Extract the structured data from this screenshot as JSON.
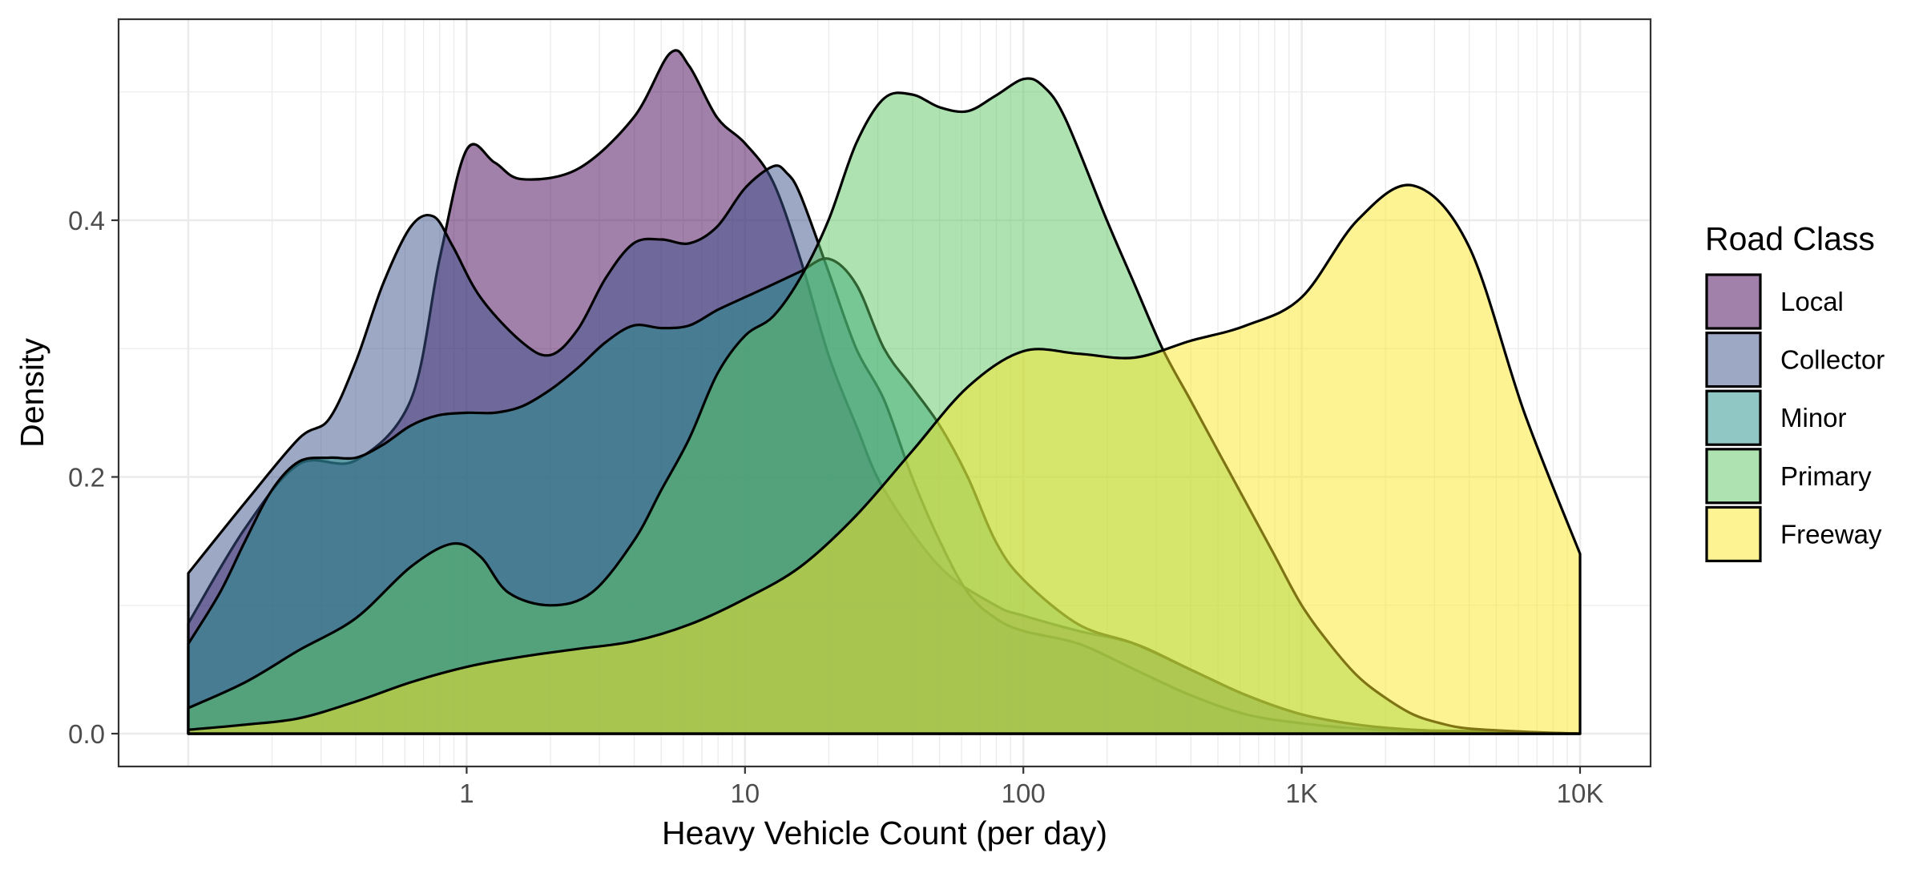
{
  "chart_data": {
    "type": "area",
    "subtype": "density",
    "title": "",
    "xlabel": "Heavy Vehicle Count (per day)",
    "ylabel": "Density",
    "x_scale": "log10",
    "xlim": [
      0.1,
      10000
    ],
    "ylim": [
      0,
      0.53
    ],
    "x_ticks": [
      {
        "value": 1,
        "label": "1"
      },
      {
        "value": 10,
        "label": "10"
      },
      {
        "value": 100,
        "label": "100"
      },
      {
        "value": 1000,
        "label": "1K"
      },
      {
        "value": 10000,
        "label": "10K"
      }
    ],
    "y_ticks": [
      {
        "value": 0,
        "label": "0.0"
      },
      {
        "value": 0.2,
        "label": "0.2"
      },
      {
        "value": 0.4,
        "label": "0.4"
      }
    ],
    "grid": true,
    "fill_opacity": 0.5,
    "legend": {
      "title": "Road Class",
      "position": "right"
    },
    "series": [
      {
        "name": "Local",
        "color": "#440154",
        "points": [
          [
            0.1,
            0.086
          ],
          [
            0.16,
            0.16
          ],
          [
            0.25,
            0.21
          ],
          [
            0.4,
            0.213
          ],
          [
            0.63,
            0.26
          ],
          [
            0.8,
            0.37
          ],
          [
            1.0,
            0.455
          ],
          [
            1.26,
            0.445
          ],
          [
            1.58,
            0.432
          ],
          [
            2.51,
            0.44
          ],
          [
            3.98,
            0.48
          ],
          [
            5.37,
            0.53
          ],
          [
            6.31,
            0.52
          ],
          [
            7.94,
            0.48
          ],
          [
            10.0,
            0.46
          ],
          [
            12.6,
            0.43
          ],
          [
            15.8,
            0.37
          ],
          [
            19.95,
            0.295
          ],
          [
            25.1,
            0.24
          ],
          [
            31.6,
            0.19
          ],
          [
            50.1,
            0.13
          ],
          [
            79.4,
            0.1
          ],
          [
            100,
            0.092
          ],
          [
            158,
            0.08
          ],
          [
            251,
            0.07
          ],
          [
            398,
            0.05
          ],
          [
            631,
            0.03
          ],
          [
            1000,
            0.015
          ],
          [
            1585,
            0.007
          ],
          [
            2512,
            0.003
          ],
          [
            3981,
            0.002
          ],
          [
            6310,
            0.001
          ],
          [
            10000,
            0.0
          ]
        ]
      },
      {
        "name": "Collector",
        "color": "#3b528b",
        "points": [
          [
            0.1,
            0.125
          ],
          [
            0.16,
            0.18
          ],
          [
            0.25,
            0.23
          ],
          [
            0.32,
            0.245
          ],
          [
            0.4,
            0.29
          ],
          [
            0.5,
            0.35
          ],
          [
            0.63,
            0.395
          ],
          [
            0.76,
            0.403
          ],
          [
            0.89,
            0.38
          ],
          [
            1.12,
            0.34
          ],
          [
            1.58,
            0.305
          ],
          [
            2.0,
            0.295
          ],
          [
            2.51,
            0.315
          ],
          [
            3.16,
            0.355
          ],
          [
            3.98,
            0.382
          ],
          [
            5.01,
            0.385
          ],
          [
            6.31,
            0.382
          ],
          [
            7.94,
            0.395
          ],
          [
            10.0,
            0.425
          ],
          [
            12.6,
            0.442
          ],
          [
            14.1,
            0.437
          ],
          [
            15.8,
            0.42
          ],
          [
            19.95,
            0.36
          ],
          [
            25.1,
            0.3
          ],
          [
            31.6,
            0.26
          ],
          [
            39.8,
            0.2
          ],
          [
            50.1,
            0.15
          ],
          [
            63.1,
            0.11
          ],
          [
            79.4,
            0.09
          ],
          [
            100,
            0.08
          ],
          [
            158,
            0.07
          ],
          [
            251,
            0.05
          ],
          [
            398,
            0.03
          ],
          [
            631,
            0.015
          ],
          [
            1000,
            0.008
          ],
          [
            1585,
            0.004
          ],
          [
            2512,
            0.002
          ],
          [
            3981,
            0.001
          ],
          [
            10000,
            0.0
          ]
        ]
      },
      {
        "name": "Minor",
        "color": "#21908c",
        "points": [
          [
            0.1,
            0.07
          ],
          [
            0.13,
            0.11
          ],
          [
            0.16,
            0.15
          ],
          [
            0.2,
            0.19
          ],
          [
            0.25,
            0.212
          ],
          [
            0.32,
            0.215
          ],
          [
            0.4,
            0.215
          ],
          [
            0.5,
            0.225
          ],
          [
            0.63,
            0.24
          ],
          [
            0.79,
            0.248
          ],
          [
            1.0,
            0.25
          ],
          [
            1.26,
            0.25
          ],
          [
            1.58,
            0.255
          ],
          [
            2.0,
            0.268
          ],
          [
            2.51,
            0.285
          ],
          [
            3.16,
            0.305
          ],
          [
            3.98,
            0.318
          ],
          [
            5.01,
            0.316
          ],
          [
            6.31,
            0.318
          ],
          [
            7.94,
            0.33
          ],
          [
            10.0,
            0.34
          ],
          [
            12.6,
            0.35
          ],
          [
            15.8,
            0.36
          ],
          [
            19.95,
            0.37
          ],
          [
            25.1,
            0.35
          ],
          [
            31.6,
            0.3
          ],
          [
            39.8,
            0.27
          ],
          [
            50.1,
            0.24
          ],
          [
            63.1,
            0.2
          ],
          [
            79.4,
            0.15
          ],
          [
            100,
            0.12
          ],
          [
            158,
            0.085
          ],
          [
            251,
            0.07
          ],
          [
            398,
            0.05
          ],
          [
            631,
            0.03
          ],
          [
            1000,
            0.015
          ],
          [
            1585,
            0.007
          ],
          [
            2512,
            0.003
          ],
          [
            3981,
            0.0015
          ],
          [
            10000,
            0.0
          ]
        ]
      },
      {
        "name": "Primary",
        "color": "#5dc863",
        "points": [
          [
            0.1,
            0.02
          ],
          [
            0.16,
            0.04
          ],
          [
            0.25,
            0.065
          ],
          [
            0.4,
            0.09
          ],
          [
            0.63,
            0.13
          ],
          [
            0.89,
            0.148
          ],
          [
            1.12,
            0.138
          ],
          [
            1.41,
            0.11
          ],
          [
            2.0,
            0.1
          ],
          [
            2.82,
            0.11
          ],
          [
            3.98,
            0.15
          ],
          [
            5.01,
            0.19
          ],
          [
            6.31,
            0.23
          ],
          [
            7.94,
            0.28
          ],
          [
            10.0,
            0.31
          ],
          [
            12.6,
            0.325
          ],
          [
            15.8,
            0.355
          ],
          [
            19.95,
            0.4
          ],
          [
            25.1,
            0.46
          ],
          [
            31.6,
            0.495
          ],
          [
            39.8,
            0.498
          ],
          [
            50.1,
            0.488
          ],
          [
            63.1,
            0.485
          ],
          [
            79.4,
            0.497
          ],
          [
            100,
            0.51
          ],
          [
            117,
            0.505
          ],
          [
            141,
            0.48
          ],
          [
            199.5,
            0.4
          ],
          [
            251,
            0.35
          ],
          [
            316,
            0.3
          ],
          [
            398,
            0.26
          ],
          [
            501,
            0.22
          ],
          [
            631,
            0.18
          ],
          [
            794,
            0.14
          ],
          [
            1000,
            0.1
          ],
          [
            1259,
            0.07
          ],
          [
            1585,
            0.045
          ],
          [
            1995,
            0.028
          ],
          [
            2512,
            0.015
          ],
          [
            3162,
            0.008
          ],
          [
            3981,
            0.004
          ],
          [
            6310,
            0.0015
          ],
          [
            10000,
            0.0
          ]
        ]
      },
      {
        "name": "Freeway",
        "color": "#fde725",
        "points": [
          [
            0.1,
            0.003
          ],
          [
            0.16,
            0.007
          ],
          [
            0.25,
            0.012
          ],
          [
            0.4,
            0.025
          ],
          [
            0.63,
            0.04
          ],
          [
            1.0,
            0.052
          ],
          [
            1.58,
            0.06
          ],
          [
            2.51,
            0.066
          ],
          [
            3.98,
            0.072
          ],
          [
            6.31,
            0.085
          ],
          [
            10.0,
            0.105
          ],
          [
            15.8,
            0.13
          ],
          [
            25.1,
            0.17
          ],
          [
            39.8,
            0.22
          ],
          [
            63.1,
            0.27
          ],
          [
            100,
            0.298
          ],
          [
            158,
            0.296
          ],
          [
            251,
            0.293
          ],
          [
            398,
            0.306
          ],
          [
            631,
            0.318
          ],
          [
            1000,
            0.34
          ],
          [
            1585,
            0.4
          ],
          [
            2512,
            0.427
          ],
          [
            3981,
            0.38
          ],
          [
            6310,
            0.25
          ],
          [
            10000,
            0.14
          ]
        ]
      }
    ]
  }
}
